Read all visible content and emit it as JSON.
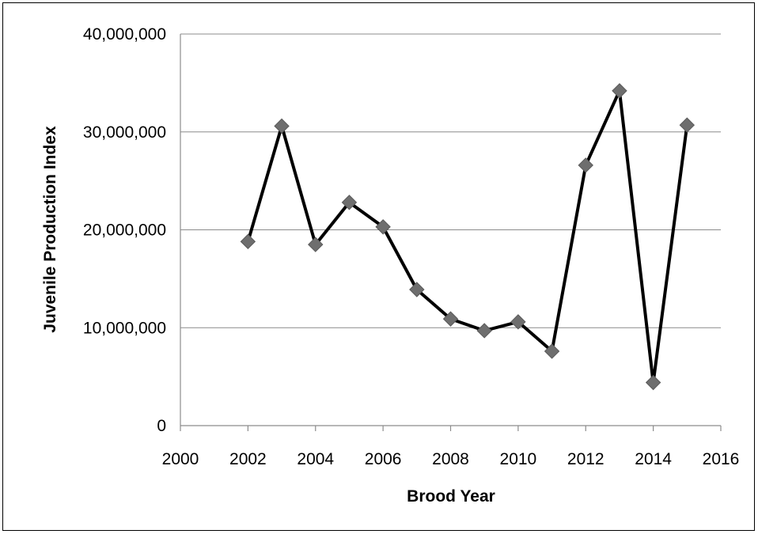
{
  "chart_data": {
    "type": "line",
    "title": "",
    "xlabel": "Brood Year",
    "ylabel": "Juvenile Production Index",
    "xlim": [
      2000,
      2016
    ],
    "ylim": [
      0,
      40000000
    ],
    "x_ticks": [
      2000,
      2002,
      2004,
      2006,
      2008,
      2010,
      2012,
      2014,
      2016
    ],
    "x_tick_labels": [
      "2000",
      "2002",
      "2004",
      "2006",
      "2008",
      "2010",
      "2012",
      "2014",
      "2016"
    ],
    "y_ticks": [
      0,
      10000000,
      20000000,
      30000000,
      40000000
    ],
    "y_tick_labels": [
      "0",
      "10,000,000",
      "20,000,000",
      "30,000,000",
      "40,000,000"
    ],
    "grid": true,
    "legend": false,
    "series": [
      {
        "x": [
          2002,
          2003,
          2004,
          2005,
          2006,
          2007,
          2008,
          2009,
          2010,
          2011,
          2012,
          2013,
          2014,
          2015
        ],
        "y": [
          18800000,
          30600000,
          18500000,
          22800000,
          20300000,
          13900000,
          10900000,
          9700000,
          10600000,
          7600000,
          26600000,
          34200000,
          4400000,
          30700000
        ],
        "line_color": "#000000",
        "marker": "diamond",
        "marker_color": "#6e6e6e"
      }
    ]
  }
}
